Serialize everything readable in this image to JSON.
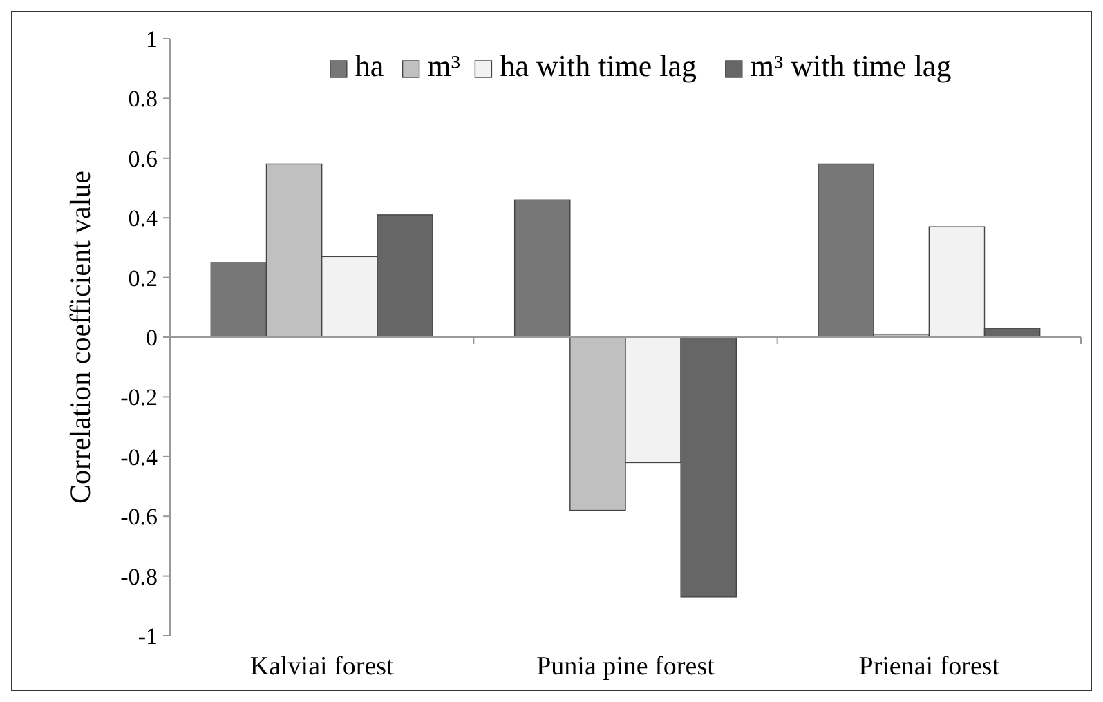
{
  "chart_data": {
    "type": "bar",
    "ylabel": "Correlation coefficient value",
    "categories": [
      "Kalviai forest",
      "Punia pine forest",
      "Prienai forest"
    ],
    "series": [
      {
        "name": "ha",
        "color": "#777777",
        "values": [
          0.25,
          0.46,
          0.58
        ]
      },
      {
        "name": "m³",
        "color": "#c0c0c0",
        "values": [
          0.58,
          -0.58,
          0.01
        ]
      },
      {
        "name": "ha with time lag",
        "color": "#f2f2f2",
        "values": [
          0.27,
          -0.42,
          0.37
        ]
      },
      {
        "name": "m³ with time lag",
        "color": "#666666",
        "values": [
          0.41,
          -0.87,
          0.03
        ]
      }
    ],
    "ylim": [
      -1,
      1
    ],
    "yticks": [
      -1,
      -0.8,
      -0.6,
      -0.4,
      -0.2,
      0,
      0.2,
      0.4,
      0.6,
      0.8,
      1
    ],
    "legend": "top"
  }
}
